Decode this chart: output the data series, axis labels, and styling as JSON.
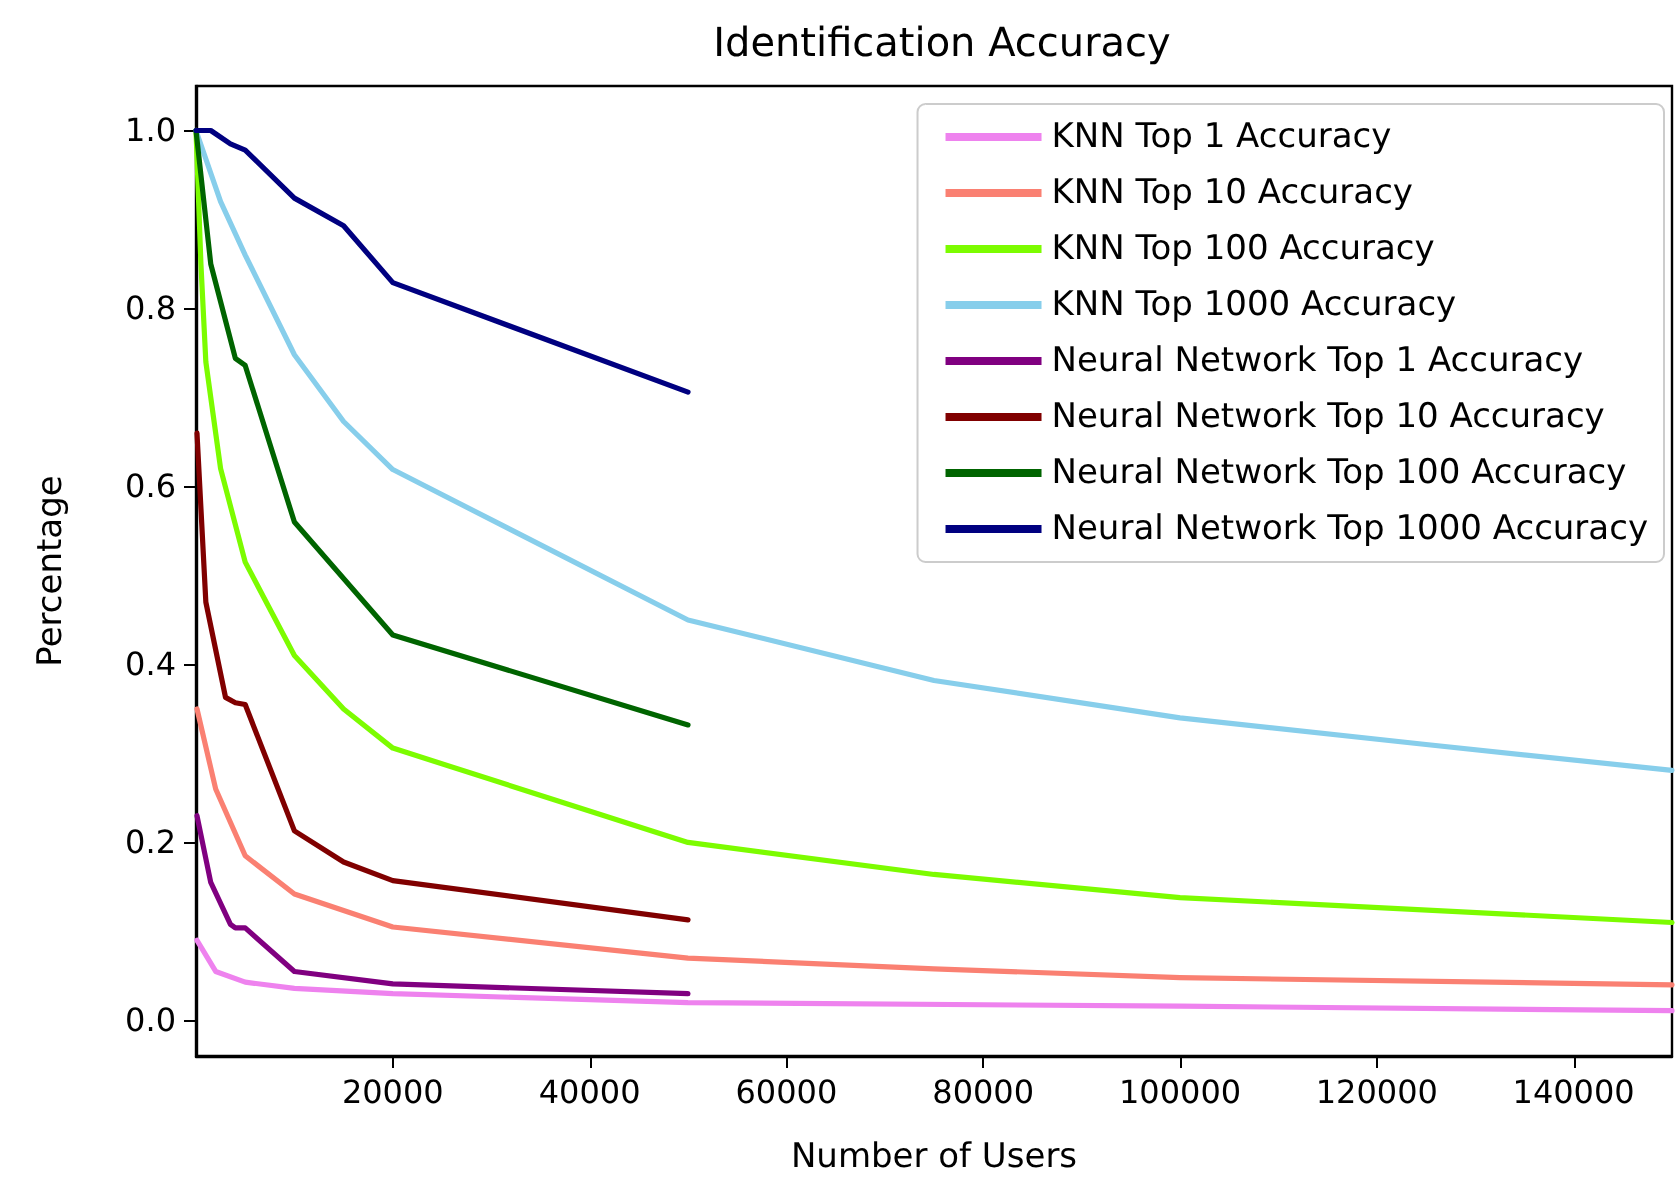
{
  "chart_data": {
    "type": "line",
    "title": "Identification Accuracy",
    "xlabel": "Number of Users",
    "ylabel": "Percentage",
    "xlim": [
      0,
      150000
    ],
    "xticks": [
      20000,
      40000,
      60000,
      80000,
      100000,
      120000,
      140000
    ],
    "ylim": [
      -0.04,
      1.05
    ],
    "yticks": [
      {
        "value": 0,
        "label": "0.0"
      },
      {
        "value": 0.2,
        "label": "0.2"
      },
      {
        "value": 0.4,
        "label": "0.4"
      },
      {
        "value": 0.6,
        "label": "0.6"
      },
      {
        "value": 0.8,
        "label": "0.8"
      },
      {
        "value": 1,
        "label": "1.0"
      }
    ],
    "grid": false,
    "legend": "top right",
    "marker": "none",
    "line_style": "solid",
    "series": [
      {
        "name": "KNN Top 1 Accuracy",
        "color": "#ee82ee",
        "x": [
          100,
          2000,
          5000,
          10000,
          20000,
          50000,
          100000,
          150000
        ],
        "values": [
          0.09,
          0.055,
          0.043,
          0.036,
          0.03,
          0.02,
          0.016,
          0.011
        ]
      },
      {
        "name": "KNN Top 10 Accuracy",
        "color": "#fa8072",
        "x": [
          100,
          2000,
          5000,
          10000,
          20000,
          50000,
          75000,
          100000,
          150000
        ],
        "values": [
          0.35,
          0.26,
          0.185,
          0.142,
          0.105,
          0.07,
          0.058,
          0.048,
          0.04
        ]
      },
      {
        "name": "KNN Top 100 Accuracy",
        "color": "#7cfc00",
        "x": [
          0,
          500,
          1000,
          2500,
          5000,
          10000,
          15000,
          20000,
          50000,
          75000,
          100000,
          150000
        ],
        "values": [
          1.0,
          0.85,
          0.74,
          0.62,
          0.515,
          0.41,
          0.35,
          0.306,
          0.2,
          0.164,
          0.138,
          0.11
        ]
      },
      {
        "name": "KNN Top 1000 Accuracy",
        "color": "#87ceeb",
        "x": [
          0,
          2500,
          5000,
          10000,
          15000,
          20000,
          50000,
          75000,
          100000,
          125000,
          150000
        ],
        "values": [
          1.0,
          0.92,
          0.86,
          0.748,
          0.673,
          0.619,
          0.45,
          0.382,
          0.34,
          0.31,
          0.281
        ]
      },
      {
        "name": "Neural Network Top 1 Accuracy",
        "color": "#800080",
        "x": [
          100,
          1500,
          3500,
          4000,
          5000,
          10000,
          20000,
          50000
        ],
        "values": [
          0.23,
          0.155,
          0.108,
          0.104,
          0.104,
          0.055,
          0.041,
          0.03
        ]
      },
      {
        "name": "Neural Network Top 10 Accuracy",
        "color": "#800000",
        "x": [
          100,
          1000,
          3000,
          4000,
          5000,
          10000,
          15000,
          20000,
          50000
        ],
        "values": [
          0.66,
          0.47,
          0.363,
          0.357,
          0.355,
          0.213,
          0.178,
          0.157,
          0.113
        ]
      },
      {
        "name": "Neural Network Top 100 Accuracy",
        "color": "#006400",
        "x": [
          0,
          1500,
          4000,
          5000,
          10000,
          20000,
          50000
        ],
        "values": [
          1.0,
          0.85,
          0.744,
          0.736,
          0.56,
          0.433,
          0.332
        ]
      },
      {
        "name": "Neural Network Top 1000 Accuracy",
        "color": "#000080",
        "x": [
          0,
          1500,
          3500,
          5000,
          10000,
          15000,
          20000,
          50000
        ],
        "values": [
          1.0,
          1.0,
          0.985,
          0.978,
          0.924,
          0.893,
          0.829,
          0.706
        ]
      }
    ]
  }
}
